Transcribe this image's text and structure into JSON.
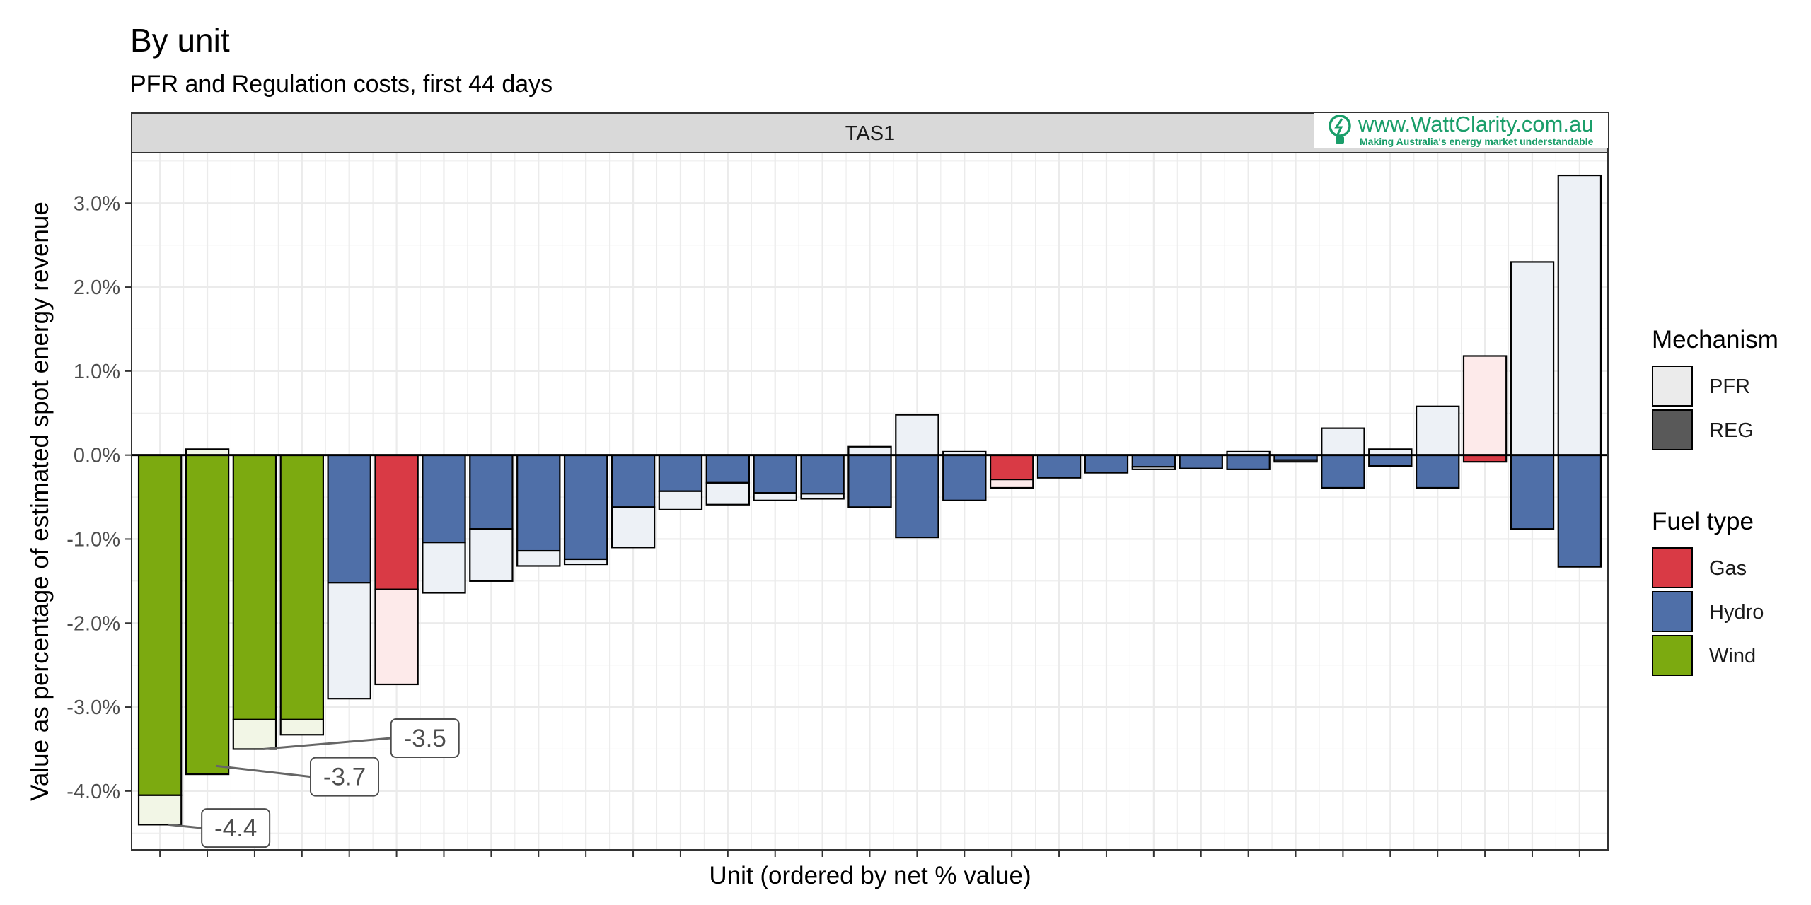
{
  "chart_data": {
    "type": "bar",
    "title": "By unit",
    "subtitle": "PFR and Regulation costs, first 44 days",
    "facet": "TAS1",
    "xlabel": "Unit (ordered by net % value)",
    "ylabel": "Value as percentage of estimated spot energy revenue",
    "ylim": [
      -4.7,
      3.6
    ],
    "yticks": [
      -4,
      -3,
      -2,
      -1,
      0,
      1,
      2,
      3
    ],
    "ytick_labels": [
      "-4.0%",
      "-3.0%",
      "-2.0%",
      "-1.0%",
      "0.0%",
      "1.0%",
      "2.0%",
      "3.0%"
    ],
    "grid": true,
    "stacked": true,
    "units": [
      {
        "fuel": "Wind",
        "reg": -4.05,
        "pfr": -0.35
      },
      {
        "fuel": "Wind",
        "reg": -3.8,
        "pfr": 0.07
      },
      {
        "fuel": "Wind",
        "reg": -3.15,
        "pfr": -0.35
      },
      {
        "fuel": "Wind",
        "reg": -3.15,
        "pfr": -0.18
      },
      {
        "fuel": "Hydro",
        "reg": -1.52,
        "pfr": -1.38
      },
      {
        "fuel": "Gas",
        "reg": -1.6,
        "pfr": -1.13
      },
      {
        "fuel": "Hydro",
        "reg": -1.04,
        "pfr": -0.6
      },
      {
        "fuel": "Hydro",
        "reg": -0.88,
        "pfr": -0.62
      },
      {
        "fuel": "Hydro",
        "reg": -1.14,
        "pfr": -0.18
      },
      {
        "fuel": "Hydro",
        "reg": -1.24,
        "pfr": -0.06
      },
      {
        "fuel": "Hydro",
        "reg": -0.62,
        "pfr": -0.48
      },
      {
        "fuel": "Hydro",
        "reg": -0.43,
        "pfr": -0.22
      },
      {
        "fuel": "Hydro",
        "reg": -0.33,
        "pfr": -0.26
      },
      {
        "fuel": "Hydro",
        "reg": -0.45,
        "pfr": -0.09
      },
      {
        "fuel": "Hydro",
        "reg": -0.46,
        "pfr": -0.06
      },
      {
        "fuel": "Hydro",
        "reg": -0.62,
        "pfr": 0.1
      },
      {
        "fuel": "Hydro",
        "reg": -0.98,
        "pfr": 0.48
      },
      {
        "fuel": "Hydro",
        "reg": -0.54,
        "pfr": 0.04
      },
      {
        "fuel": "Gas",
        "reg": -0.29,
        "pfr": -0.1
      },
      {
        "fuel": "Hydro",
        "reg": -0.27,
        "pfr": 0.0
      },
      {
        "fuel": "Hydro",
        "reg": -0.21,
        "pfr": 0.0
      },
      {
        "fuel": "Hydro",
        "reg": -0.14,
        "pfr": -0.03
      },
      {
        "fuel": "Hydro",
        "reg": -0.16,
        "pfr": 0.0
      },
      {
        "fuel": "Hydro",
        "reg": -0.17,
        "pfr": 0.04
      },
      {
        "fuel": "Hydro",
        "reg": -0.06,
        "pfr": -0.02
      },
      {
        "fuel": "Hydro",
        "reg": -0.39,
        "pfr": 0.32
      },
      {
        "fuel": "Hydro",
        "reg": -0.13,
        "pfr": 0.07
      },
      {
        "fuel": "Hydro",
        "reg": -0.39,
        "pfr": 0.58
      },
      {
        "fuel": "Gas",
        "reg": -0.08,
        "pfr": 1.18
      },
      {
        "fuel": "Hydro",
        "reg": -0.88,
        "pfr": 2.3
      },
      {
        "fuel": "Hydro",
        "reg": -1.33,
        "pfr": 3.33
      }
    ],
    "callouts": [
      {
        "unit_index": 0,
        "value": -4.4,
        "label": "-4.4",
        "label_at": [
          1.6,
          -4.44
        ]
      },
      {
        "unit_index": 1,
        "value": -3.7,
        "label": "-3.7",
        "label_at": [
          3.9,
          -3.83
        ]
      },
      {
        "unit_index": 2,
        "value": -3.5,
        "label": "-3.5",
        "label_at": [
          5.6,
          -3.37
        ]
      }
    ],
    "legend": {
      "placement": "right",
      "mechanism": {
        "title": "Mechanism",
        "items": [
          {
            "label": "PFR",
            "color": "#ebebeb"
          },
          {
            "label": "REG",
            "color": "#595959"
          }
        ]
      },
      "fuel": {
        "title": "Fuel type",
        "items": [
          {
            "label": "Gas",
            "color": "#d93a45"
          },
          {
            "label": "Hydro",
            "color": "#4f6fa8"
          },
          {
            "label": "Wind",
            "color": "#7caa10"
          }
        ]
      }
    },
    "pfr_tints": {
      "Wind": "#f2f6e6",
      "Hydro": "#edf1f6",
      "Gas": "#fdeaea"
    }
  },
  "logo": {
    "url": "www.WattClarity.com.au",
    "tagline": "Making Australia's energy market understandable"
  }
}
